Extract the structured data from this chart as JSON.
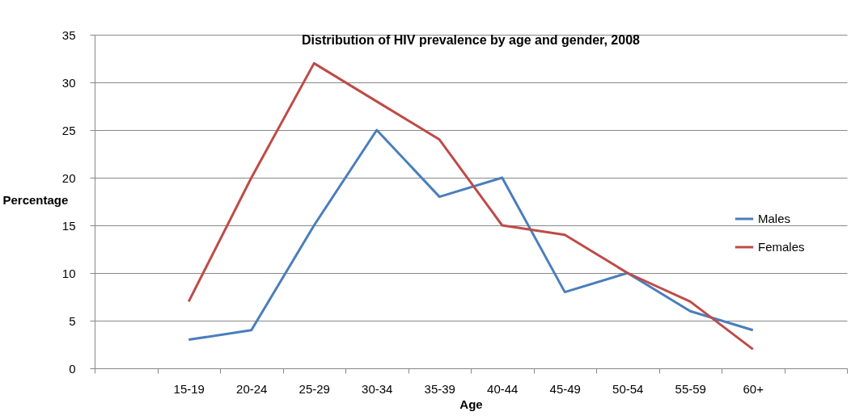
{
  "chart_data": {
    "type": "line",
    "title": "Distribution of HIV prevalence by age and gender, 2008",
    "xlabel": "Age",
    "ylabel": "Percentage",
    "categories": [
      null,
      "15-19",
      "20-24",
      "25-29",
      "30-34",
      "35-39",
      "40-44",
      "45-49",
      "50-54",
      "55-59",
      "60+",
      null
    ],
    "series": [
      {
        "name": "Males",
        "color": "#4a7ebb",
        "values": [
          null,
          3,
          4,
          15,
          25,
          18,
          20,
          8,
          10,
          6,
          4,
          null
        ]
      },
      {
        "name": "Females",
        "color": "#be4b48",
        "values": [
          null,
          7,
          20,
          32,
          28,
          24,
          15,
          14,
          10,
          7,
          2,
          null
        ]
      }
    ],
    "ylim": [
      0,
      35
    ],
    "yticks": [
      0,
      5,
      10,
      15,
      20,
      25,
      30,
      35
    ],
    "grid": "y",
    "legend": "right",
    "marker": "none",
    "line_style": "solid"
  }
}
